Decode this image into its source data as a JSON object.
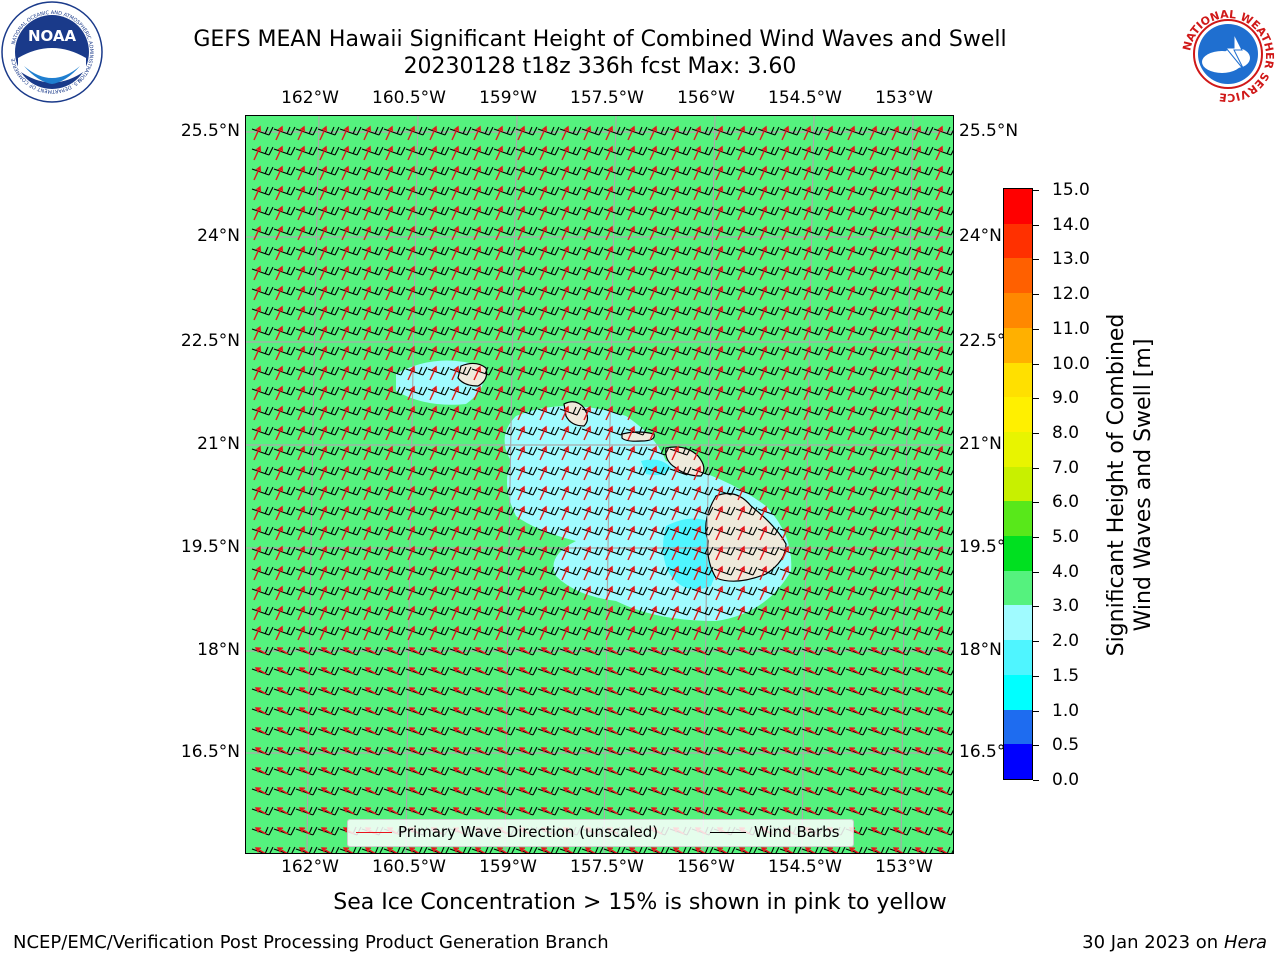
{
  "title_line1": "GEFS MEAN Hawaii Significant Height of Combined Wind Waves and Swell",
  "title_line2": "20230128 t18z 336h fcst   Max: 3.60",
  "lon_labels": [
    "162°W",
    "160.5°W",
    "159°W",
    "157.5°W",
    "156°W",
    "154.5°W",
    "153°W"
  ],
  "lat_labels": [
    "25.5°N",
    "24°N",
    "22.5°N",
    "21°N",
    "19.5°N",
    "18°N",
    "16.5°N"
  ],
  "legend": {
    "wave_direction_label": "Primary Wave Direction (unscaled)",
    "wind_barbs_label": "Wind Barbs",
    "wave_direction_color": "#e8141c",
    "wind_barbs_color": "#000000"
  },
  "colorbar": {
    "title_line1": "Significant Height of Combined",
    "title_line2": "Wind Waves and Swell [m]",
    "tick_labels": [
      "0.0",
      "0.5",
      "1.0",
      "1.5",
      "2.0",
      "3.0",
      "4.0",
      "5.0",
      "6.0",
      "7.0",
      "8.0",
      "9.0",
      "10.0",
      "11.0",
      "12.0",
      "13.0",
      "14.0",
      "15.0"
    ],
    "colors": [
      "#0000ff",
      "#1e6cf0",
      "#00ffff",
      "#4ff5ff",
      "#a0fbff",
      "#55f27e",
      "#00e020",
      "#58e81a",
      "#c8f000",
      "#e8f400",
      "#fff000",
      "#ffe000",
      "#ffb000",
      "#ff8800",
      "#ff6000",
      "#ff3000",
      "#ff0000"
    ]
  },
  "bottom_note": "Sea Ice Concentration > 15% is shown in pink to yellow",
  "footer_left": "NCEP/EMC/Verification Post Processing Product Generation Branch",
  "footer_date": "30 Jan 2023 on ",
  "footer_host": "Hera",
  "noaa_logo_text": "NOAA",
  "noaa_logo_ring_top": "NATIONAL OCEANIC AND ATMOSPHERIC ADMINISTRATION",
  "noaa_logo_ring_bottom": "U.S. DEPARTMENT OF COMMERCE",
  "nws_logo_ring": "NATIONAL WEATHER SERVICE",
  "colors": {
    "ocean_3_to_4m": "#55f27e",
    "ocean_2_to_3m": "#a0fbff",
    "land": "#efeadb"
  }
}
